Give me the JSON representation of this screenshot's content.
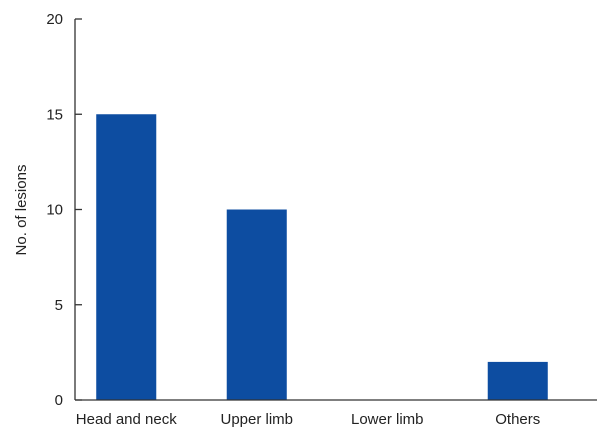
{
  "chart_data": {
    "type": "bar",
    "title": "",
    "xlabel": "",
    "ylabel": "No. of lesions",
    "categories": [
      "Head and neck",
      "Upper limb",
      "Lower limb",
      "Others"
    ],
    "values": [
      15,
      10,
      0,
      2
    ],
    "ylim": [
      0,
      20
    ],
    "yticks": [
      "0",
      "5",
      "10",
      "15",
      "20"
    ],
    "grid": false,
    "legend": "none",
    "bar_color": "#0d4da1"
  }
}
